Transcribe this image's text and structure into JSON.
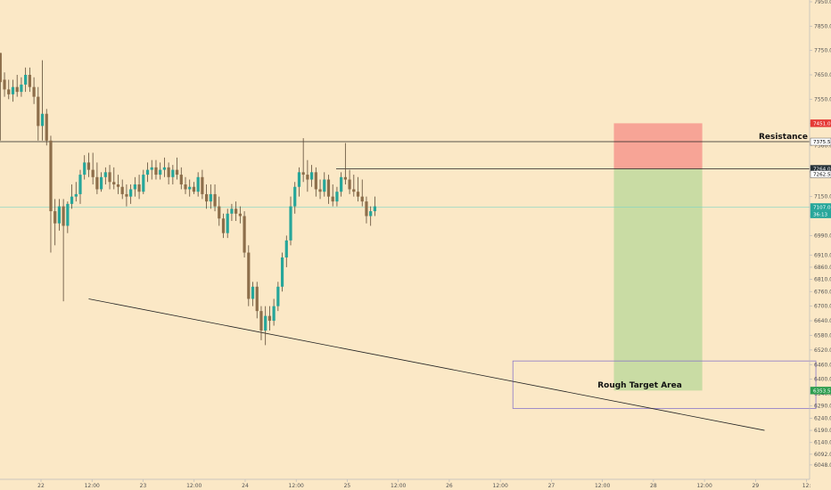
{
  "chart_data": {
    "type": "candlestick",
    "ylim": [
      6000,
      7950
    ],
    "price_ticks": [
      7950.0,
      7850.0,
      7750.0,
      7650.0,
      7550.0,
      7450.0,
      7360.0,
      7270.0,
      7150.0,
      7070.0,
      6990.0,
      6910.0,
      6860.0,
      6810.0,
      6760.0,
      6700.0,
      6640.0,
      6580.0,
      6520.0,
      6460.0,
      6400.0,
      6340.0,
      6290.0,
      6240.0,
      6190.0,
      6140.0,
      6092.0,
      6048.0
    ],
    "price_tick_labels": [
      "7950.0",
      "7850.0",
      "7750.0",
      "7650.0",
      "7550.0",
      "7450.0",
      "7360.0",
      "7270.0",
      "7150.0",
      "7070.0",
      "6990.0",
      "6910.0",
      "6860.0",
      "6810.0",
      "6760.0",
      "6700.0",
      "6640.0",
      "6580.0",
      "6520.0",
      "6460.0",
      "6400.0",
      "6340.0",
      "6290.0",
      "6240.0",
      "6190.0",
      "6140.0",
      "6092.0",
      "6048.0"
    ],
    "time_labels": [
      "22",
      "12:00",
      "23",
      "12:00",
      "24",
      "12:00",
      "25",
      "12:00",
      "26",
      "12:00",
      "27",
      "12:00",
      "28",
      "12:00",
      "29",
      "12:"
    ],
    "time_label_index": [
      0,
      12,
      24,
      36,
      48,
      60,
      72,
      84,
      96,
      108,
      120,
      132,
      144,
      156,
      168,
      180
    ],
    "candles": [
      [
        7740,
        7740,
        7380,
        7620
      ],
      [
        7630,
        7660,
        7560,
        7590
      ],
      [
        7590,
        7630,
        7550,
        7570
      ],
      [
        7570,
        7630,
        7540,
        7600
      ],
      [
        7600,
        7650,
        7560,
        7580
      ],
      [
        7580,
        7640,
        7560,
        7610
      ],
      [
        7610,
        7680,
        7580,
        7650
      ],
      [
        7650,
        7680,
        7580,
        7600
      ],
      [
        7600,
        7640,
        7530,
        7560
      ],
      [
        7560,
        7600,
        7380,
        7440
      ],
      [
        7440,
        7710,
        7380,
        7490
      ],
      [
        7490,
        7510,
        7360,
        7380
      ],
      [
        7380,
        7400,
        6920,
        7090
      ],
      [
        7090,
        7140,
        6950,
        7040
      ],
      [
        7040,
        7140,
        7010,
        7110
      ],
      [
        7110,
        7140,
        6720,
        7030
      ],
      [
        7030,
        7130,
        7000,
        7120
      ],
      [
        7120,
        7200,
        7100,
        7150
      ],
      [
        7150,
        7210,
        7130,
        7160
      ],
      [
        7160,
        7260,
        7120,
        7240
      ],
      [
        7240,
        7320,
        7220,
        7290
      ],
      [
        7290,
        7330,
        7230,
        7260
      ],
      [
        7260,
        7330,
        7200,
        7230
      ],
      [
        7230,
        7290,
        7160,
        7180
      ],
      [
        7180,
        7250,
        7170,
        7230
      ],
      [
        7230,
        7270,
        7200,
        7250
      ],
      [
        7250,
        7280,
        7180,
        7210
      ],
      [
        7210,
        7270,
        7180,
        7200
      ],
      [
        7200,
        7240,
        7160,
        7190
      ],
      [
        7190,
        7220,
        7140,
        7160
      ],
      [
        7160,
        7200,
        7110,
        7150
      ],
      [
        7150,
        7200,
        7120,
        7180
      ],
      [
        7180,
        7230,
        7150,
        7200
      ],
      [
        7200,
        7240,
        7140,
        7170
      ],
      [
        7170,
        7260,
        7160,
        7240
      ],
      [
        7240,
        7290,
        7210,
        7260
      ],
      [
        7260,
        7300,
        7220,
        7270
      ],
      [
        7270,
        7300,
        7220,
        7240
      ],
      [
        7240,
        7290,
        7220,
        7260
      ],
      [
        7260,
        7310,
        7230,
        7270
      ],
      [
        7270,
        7290,
        7200,
        7230
      ],
      [
        7230,
        7280,
        7200,
        7260
      ],
      [
        7260,
        7310,
        7220,
        7240
      ],
      [
        7240,
        7270,
        7180,
        7200
      ],
      [
        7200,
        7230,
        7160,
        7180
      ],
      [
        7180,
        7220,
        7150,
        7190
      ],
      [
        7190,
        7210,
        7160,
        7170
      ],
      [
        7170,
        7250,
        7150,
        7230
      ],
      [
        7230,
        7260,
        7140,
        7160
      ],
      [
        7160,
        7200,
        7100,
        7130
      ],
      [
        7130,
        7200,
        7100,
        7160
      ],
      [
        7160,
        7200,
        7090,
        7110
      ],
      [
        7110,
        7150,
        7030,
        7060
      ],
      [
        7060,
        7080,
        6980,
        7000
      ],
      [
        7000,
        7100,
        6980,
        7080
      ],
      [
        7080,
        7120,
        7050,
        7100
      ],
      [
        7100,
        7130,
        7050,
        7080
      ],
      [
        7080,
        7110,
        7040,
        7070
      ],
      [
        7070,
        7090,
        6900,
        6920
      ],
      [
        6920,
        6950,
        6700,
        6730
      ],
      [
        6730,
        6800,
        6700,
        6780
      ],
      [
        6780,
        6800,
        6650,
        6680
      ],
      [
        6680,
        6700,
        6560,
        6600
      ],
      [
        6600,
        6700,
        6540,
        6660
      ],
      [
        6660,
        6700,
        6600,
        6640
      ],
      [
        6640,
        6730,
        6620,
        6700
      ],
      [
        6700,
        6800,
        6680,
        6780
      ],
      [
        6780,
        6920,
        6760,
        6900
      ],
      [
        6900,
        6990,
        6860,
        6970
      ],
      [
        6970,
        7150,
        6950,
        7110
      ],
      [
        7110,
        7210,
        7080,
        7190
      ],
      [
        7190,
        7270,
        7150,
        7250
      ],
      [
        7250,
        7390,
        7210,
        7240
      ],
      [
        7240,
        7300,
        7170,
        7220
      ],
      [
        7220,
        7280,
        7190,
        7250
      ],
      [
        7250,
        7270,
        7150,
        7180
      ],
      [
        7180,
        7220,
        7140,
        7170
      ],
      [
        7170,
        7250,
        7150,
        7220
      ],
      [
        7220,
        7240,
        7120,
        7150
      ],
      [
        7150,
        7200,
        7110,
        7130
      ],
      [
        7130,
        7190,
        7110,
        7170
      ],
      [
        7170,
        7250,
        7150,
        7230
      ],
      [
        7230,
        7370,
        7200,
        7220
      ],
      [
        7220,
        7260,
        7160,
        7180
      ],
      [
        7180,
        7240,
        7150,
        7170
      ],
      [
        7170,
        7230,
        7130,
        7150
      ],
      [
        7150,
        7220,
        7110,
        7130
      ],
      [
        7130,
        7150,
        7040,
        7070
      ],
      [
        7070,
        7110,
        7030,
        7090
      ],
      [
        7090,
        7150,
        7070,
        7110
      ]
    ],
    "resistance_price": 7375.5,
    "upper_line_price": 7264.0,
    "current_price": 7107.0,
    "support_line": {
      "from": [
        7,
        6730
      ],
      "to": [
        210,
        6190
      ]
    },
    "risk_zone": {
      "from_index": 150,
      "to_index": 171,
      "bottom": 7264.0,
      "top": 7451.0
    },
    "reward_zone": {
      "from_index": 150,
      "to_index": 171,
      "bottom": 6353.5,
      "top": 7264.0
    },
    "target_box": {
      "from_index": 126,
      "to_index": 198,
      "bottom": 6280,
      "top": 6475
    },
    "price_tags": [
      {
        "text": "7451.0",
        "price": 7451.0,
        "bg": "#e53935",
        "fg": "#ffffff"
      },
      {
        "text": "7375.5",
        "price": 7375.5,
        "bg": "#ffffff",
        "fg": "#000000"
      },
      {
        "text": "7264.0",
        "price": 7264.0,
        "bg": "#263238",
        "fg": "#ffffff"
      },
      {
        "text": "7262.5",
        "price": 7242.0,
        "bg": "#ffffff",
        "fg": "#000000"
      },
      {
        "text": "7107.0",
        "price": 7107.0,
        "bg": "#26a69a",
        "fg": "#ffffff"
      },
      {
        "text": "36:13",
        "price": 7077.0,
        "bg": "#26a69a",
        "fg": "#ffffff"
      },
      {
        "text": "6353.5",
        "price": 6353.5,
        "bg": "#2e9e4f",
        "fg": "#ffffff"
      }
    ],
    "annotations": [
      {
        "text": "Resistance",
        "anchor": "resistance"
      },
      {
        "text": "Rough Target Area",
        "anchor": "target"
      }
    ],
    "colors": {
      "background": "#fbe8c6",
      "up": "#26a69a",
      "down": "#8d6e4a",
      "wick": "#5d4a35",
      "current_line": "#7fd6c3",
      "risk_fill": "#f7a496",
      "reward_fill": "#c9dca4",
      "target_border": "#8a77c8",
      "line": "#222222",
      "axis": "#bbbbbb"
    }
  }
}
